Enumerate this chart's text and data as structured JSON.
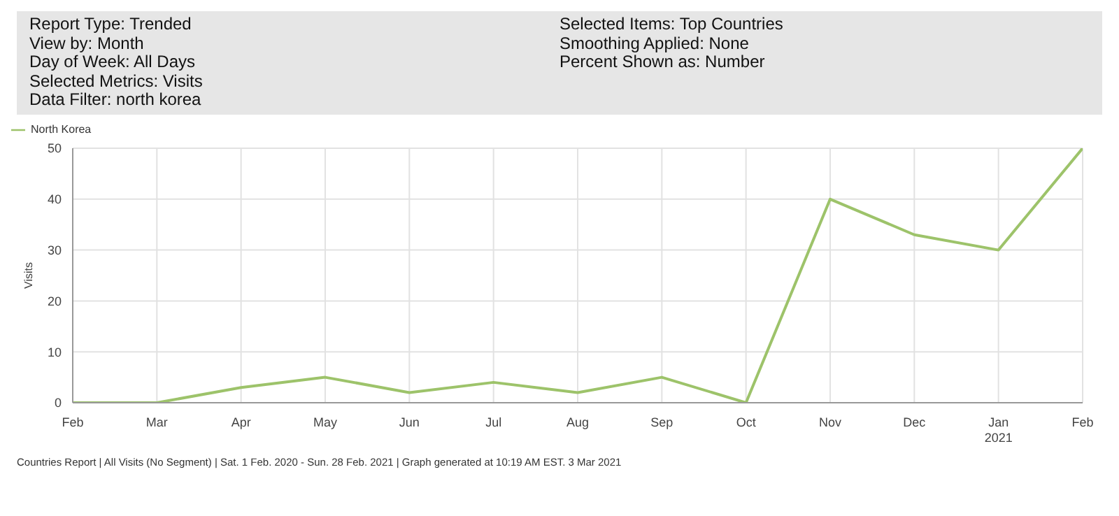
{
  "chart_data": {
    "type": "line",
    "ylabel": "Visits",
    "annotations": [
      "Report Type: Trended",
      "View by: Month",
      "Day of Week: All Days",
      "Selected Metrics: Visits",
      "Data Filter: north korea",
      "Selected Items: Top Countries",
      "Smoothing Applied: None",
      "Percent Shown as: Number",
      "Countries Report | All Visits (No Segment) | Sat.  1 Feb. 2020 - Sun. 28 Feb. 2021 | Graph generated at 10:19 AM EST.  3 Mar 2021"
    ],
    "categories": [
      "Feb",
      "Mar",
      "Apr",
      "May",
      "Jun",
      "Jul",
      "Aug",
      "Sep",
      "Oct",
      "Nov",
      "Dec",
      "Jan\n2021",
      "Feb"
    ],
    "series": [
      {
        "name": "North Korea",
        "color": "#9dc36a",
        "values": [
          0,
          0,
          3,
          5,
          2,
          4,
          2,
          5,
          0,
          40,
          33,
          30,
          50
        ]
      }
    ],
    "ylim": [
      0,
      50
    ],
    "yticks": [
      0,
      10,
      20,
      30,
      40,
      50
    ],
    "grid": true,
    "legend": "top left",
    "marker": "none",
    "line_style": "solid"
  }
}
